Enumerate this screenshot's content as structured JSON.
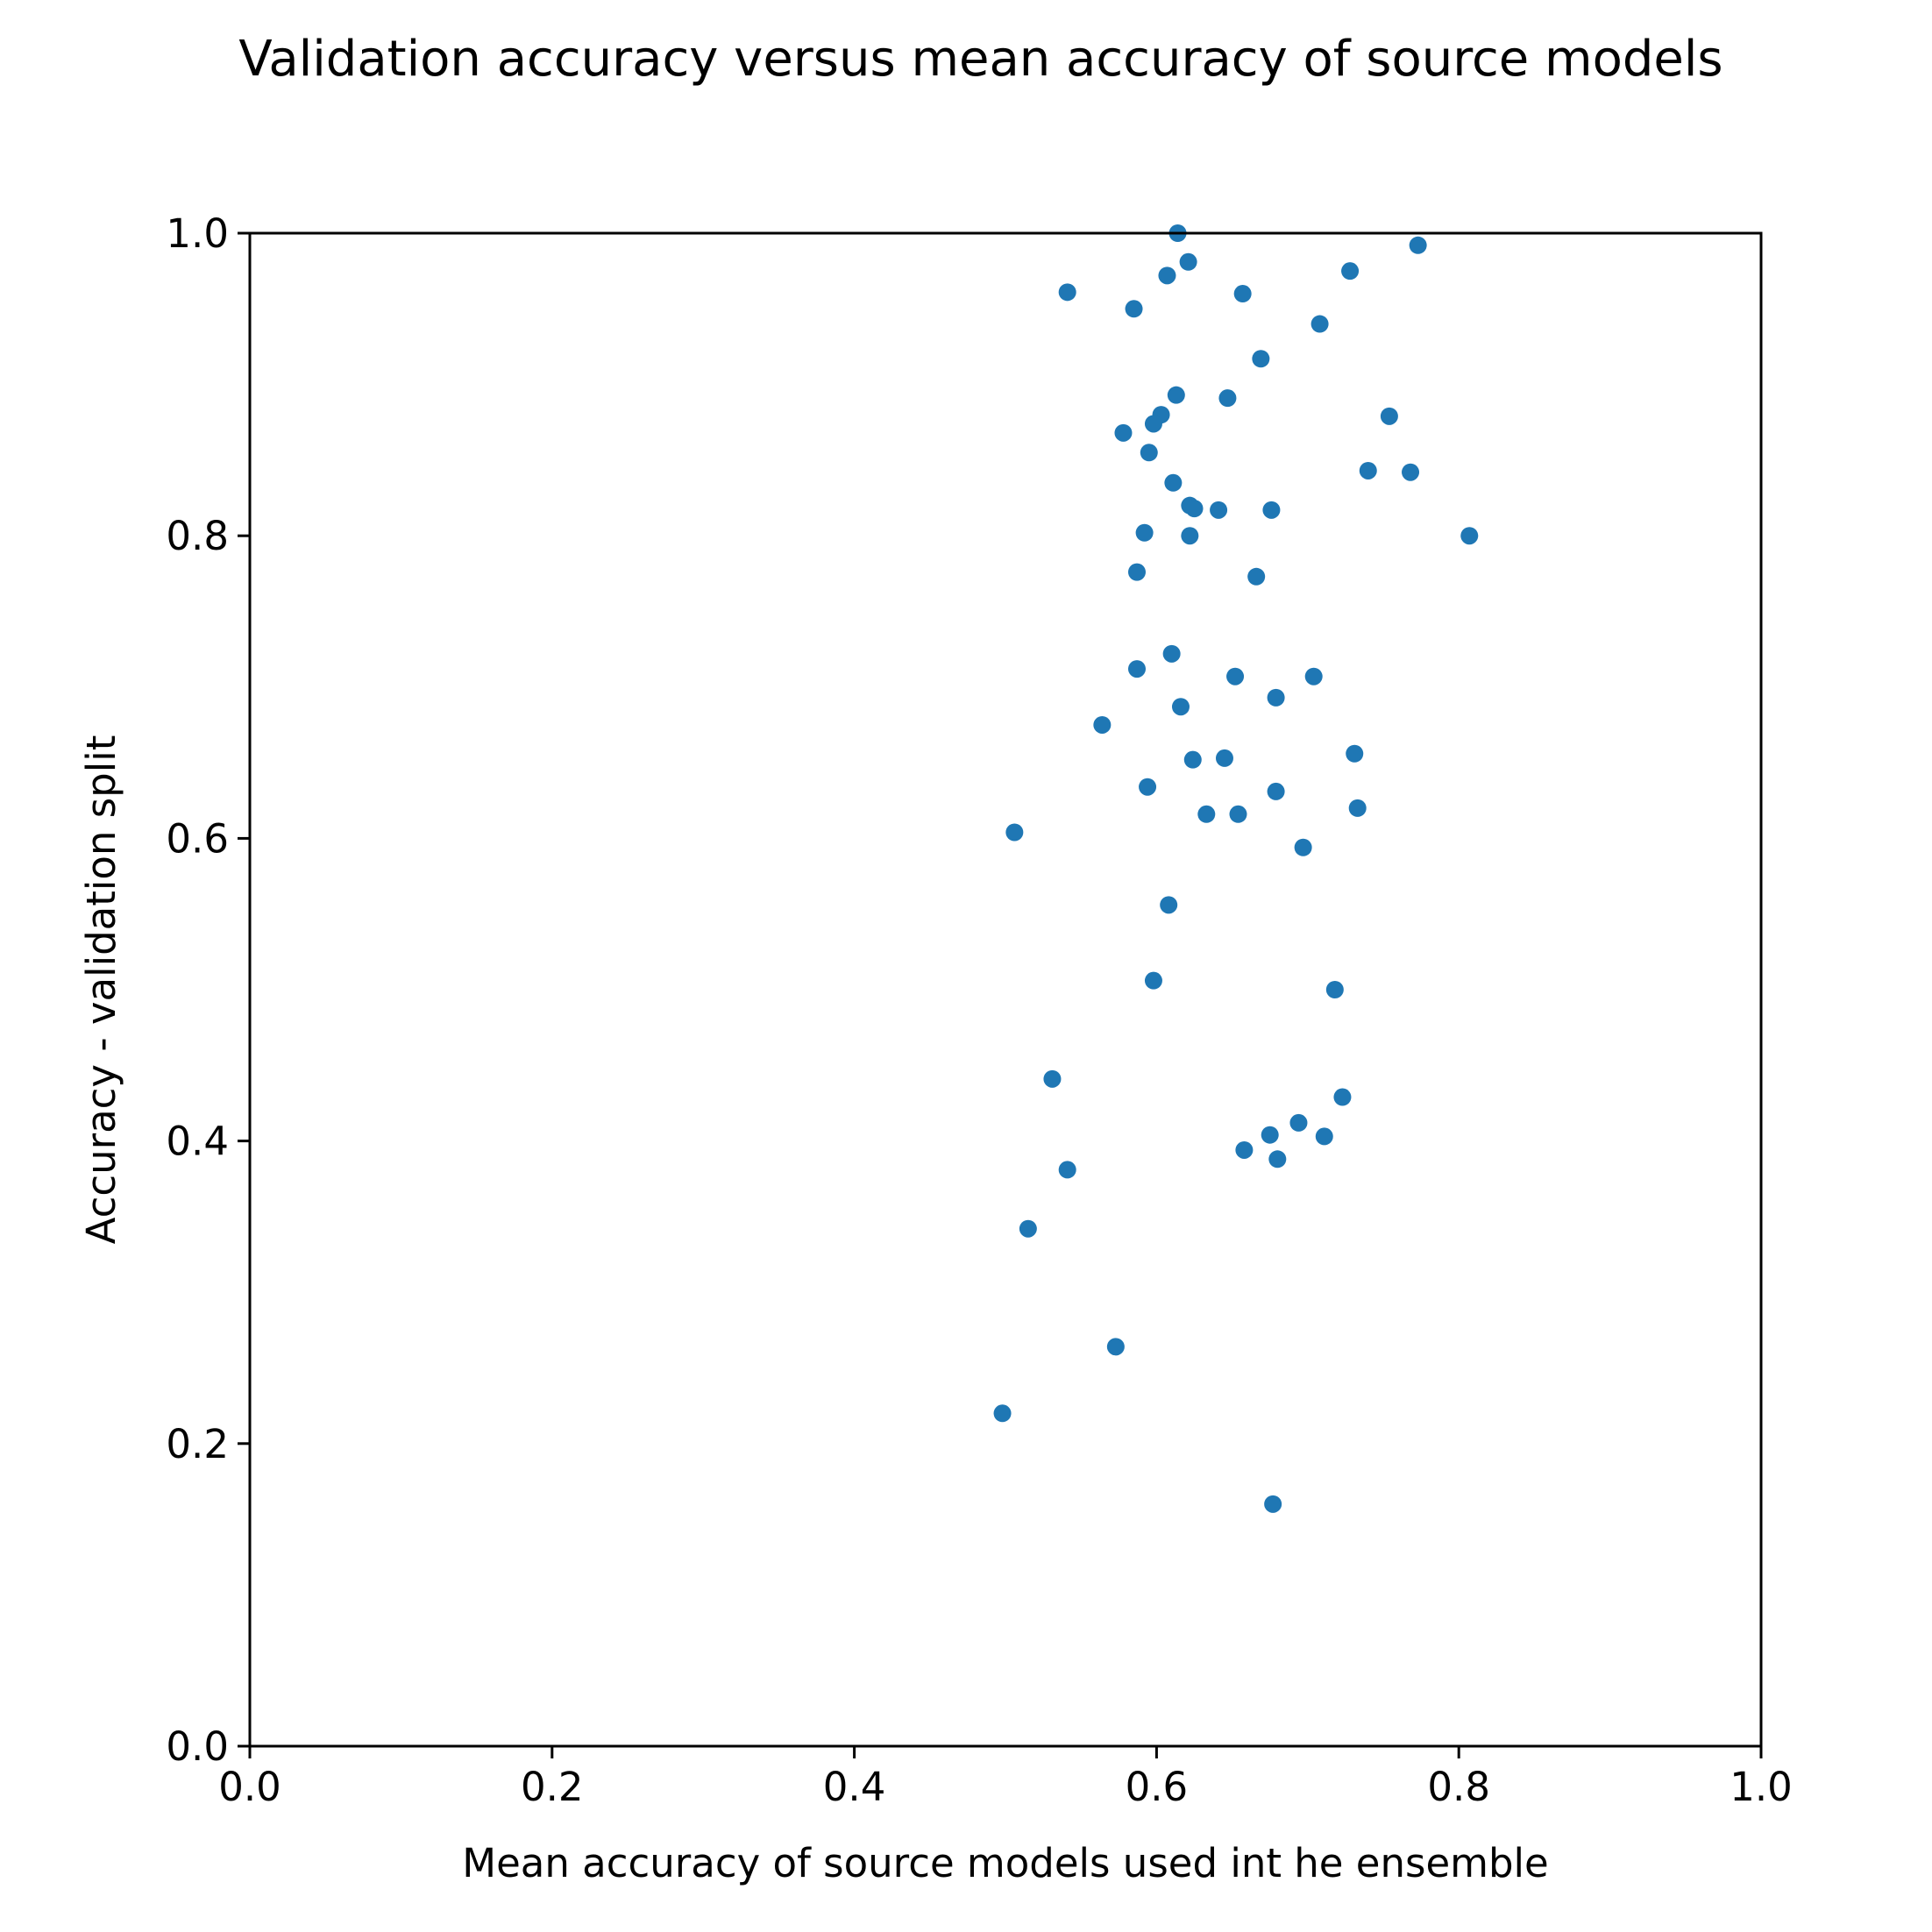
{
  "chart_data": {
    "type": "scatter",
    "title": "Validation accuracy versus mean accuracy of source models",
    "xlabel": "Mean accuracy of source models used int he ensemble",
    "ylabel": "Accuracy - validation split",
    "xlim": [
      0.0,
      1.0
    ],
    "ylim": [
      0.0,
      1.0
    ],
    "xticks": [
      "0.0",
      "0.2",
      "0.4",
      "0.6",
      "0.8",
      "1.0"
    ],
    "yticks": [
      "0.0",
      "0.2",
      "0.4",
      "0.6",
      "0.8",
      "1.0"
    ],
    "grid": false,
    "marker_color": "#1f77b4",
    "series": [
      {
        "points": [
          [
            0.614,
            1.0
          ],
          [
            0.773,
            0.992
          ],
          [
            0.621,
            0.981
          ],
          [
            0.728,
            0.975
          ],
          [
            0.607,
            0.972
          ],
          [
            0.541,
            0.961
          ],
          [
            0.657,
            0.96
          ],
          [
            0.585,
            0.95
          ],
          [
            0.708,
            0.94
          ],
          [
            0.669,
            0.917
          ],
          [
            0.613,
            0.893
          ],
          [
            0.647,
            0.891
          ],
          [
            0.603,
            0.88
          ],
          [
            0.754,
            0.879
          ],
          [
            0.598,
            0.874
          ],
          [
            0.578,
            0.868
          ],
          [
            0.595,
            0.855
          ],
          [
            0.74,
            0.843
          ],
          [
            0.768,
            0.842
          ],
          [
            0.611,
            0.835
          ],
          [
            0.622,
            0.82
          ],
          [
            0.625,
            0.818
          ],
          [
            0.641,
            0.817
          ],
          [
            0.676,
            0.817
          ],
          [
            0.592,
            0.802
          ],
          [
            0.622,
            0.8
          ],
          [
            0.807,
            0.8
          ],
          [
            0.587,
            0.776
          ],
          [
            0.666,
            0.773
          ],
          [
            0.61,
            0.722
          ],
          [
            0.587,
            0.712
          ],
          [
            0.652,
            0.707
          ],
          [
            0.704,
            0.707
          ],
          [
            0.679,
            0.693
          ],
          [
            0.616,
            0.687
          ],
          [
            0.564,
            0.675
          ],
          [
            0.731,
            0.656
          ],
          [
            0.624,
            0.652
          ],
          [
            0.645,
            0.653
          ],
          [
            0.594,
            0.634
          ],
          [
            0.679,
            0.631
          ],
          [
            0.733,
            0.62
          ],
          [
            0.633,
            0.616
          ],
          [
            0.654,
            0.616
          ],
          [
            0.506,
            0.604
          ],
          [
            0.697,
            0.594
          ],
          [
            0.608,
            0.556
          ],
          [
            0.598,
            0.506
          ],
          [
            0.718,
            0.5
          ],
          [
            0.531,
            0.441
          ],
          [
            0.723,
            0.429
          ],
          [
            0.694,
            0.412
          ],
          [
            0.675,
            0.404
          ],
          [
            0.711,
            0.403
          ],
          [
            0.658,
            0.394
          ],
          [
            0.68,
            0.388
          ],
          [
            0.541,
            0.381
          ],
          [
            0.515,
            0.342
          ],
          [
            0.573,
            0.264
          ],
          [
            0.498,
            0.22
          ],
          [
            0.677,
            0.16
          ]
        ]
      }
    ]
  }
}
